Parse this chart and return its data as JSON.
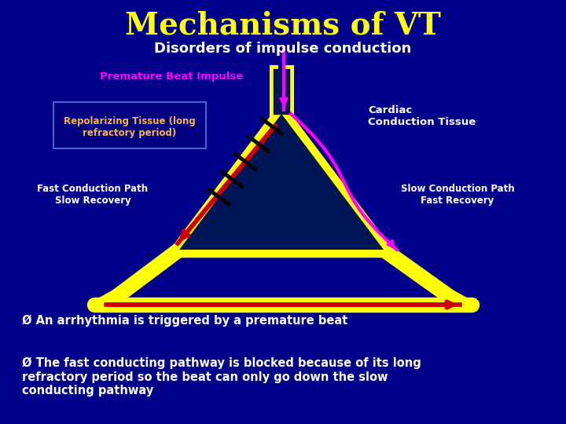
{
  "bg_color": "#00008B",
  "title": "Mechanisms of VT",
  "subtitle": "Disorders of impulse conduction",
  "title_color": "#FFFF00",
  "subtitle_color": "#FFFFFF",
  "title_fontsize": 28,
  "subtitle_fontsize": 13,
  "label_premature": "Premature Beat Impulse",
  "label_repolarizing": "Repolarizing Tissue (long\nrefractory period)",
  "label_fast_path": "Fast Conduction Path\nSlow Recovery",
  "label_slow_path": "Slow Conduction Path\nFast Recovery",
  "label_cardiac": "Cardiac\nConduction Tissue",
  "bullet1": "Ø An arrhythmia is triggered by a premature beat",
  "bullet2": "Ø The fast conducting pathway is blocked because of its long\nrefractory period so the beat can only go down the slow\nconducting pathway",
  "yellow": "#FFFF00",
  "red": "#CC0000",
  "magenta": "#FF00FF",
  "dark_fill": "#001555",
  "box_color": "#000080",
  "box_edge": "#4466CC",
  "repolarizing_color": "#FFB347",
  "white": "#FFFFFF"
}
